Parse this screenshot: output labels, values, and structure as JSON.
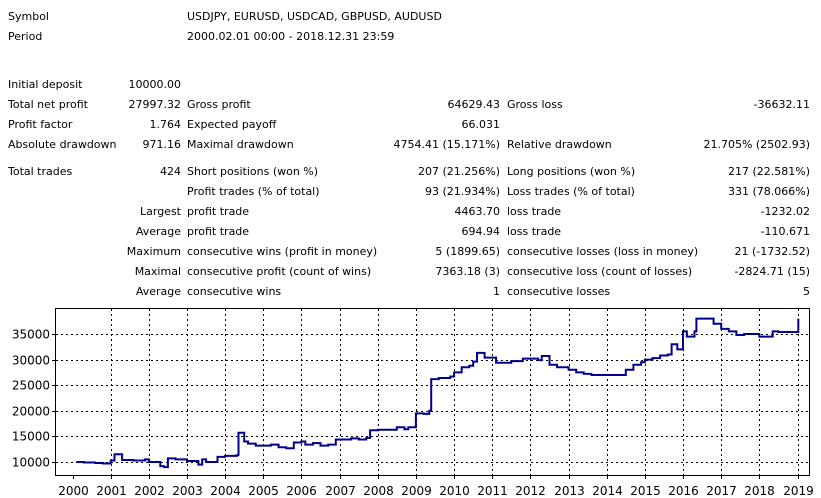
{
  "report": {
    "symbol_label": "Symbol",
    "symbol_value": "USDJPY, EURUSD, USDCAD, GBPUSD, AUDUSD",
    "period_label": "Period",
    "period_value": "2000.02.01 00:00 - 2018.12.31 23:59",
    "initial_deposit_label": "Initial deposit",
    "initial_deposit_value": "10000.00",
    "total_net_profit_label": "Total net profit",
    "total_net_profit_value": "27997.32",
    "gross_profit_label": "Gross profit",
    "gross_profit_value": "64629.43",
    "gross_loss_label": "Gross loss",
    "gross_loss_value": "-36632.11",
    "profit_factor_label": "Profit factor",
    "profit_factor_value": "1.764",
    "expected_payoff_label": "Expected payoff",
    "expected_payoff_value": "66.031",
    "absolute_drawdown_label": "Absolute drawdown",
    "absolute_drawdown_value": "971.16",
    "maximal_drawdown_label": "Maximal drawdown",
    "maximal_drawdown_value": "4754.41 (15.171%)",
    "relative_drawdown_label": "Relative drawdown",
    "relative_drawdown_value": "21.705% (2502.93)",
    "total_trades_label": "Total trades",
    "total_trades_value": "424",
    "short_positions_label": "Short positions (won %)",
    "short_positions_value": "207 (21.256%)",
    "long_positions_label": "Long positions (won %)",
    "long_positions_value": "217 (22.581%)",
    "profit_trades_label": "Profit trades (% of total)",
    "profit_trades_value": "93 (21.934%)",
    "loss_trades_label": "Loss trades (% of total)",
    "loss_trades_value": "331 (78.066%)",
    "largest_label": "Largest",
    "largest_profit_label": "profit trade",
    "largest_profit_value": "4463.70",
    "largest_loss_label": "loss trade",
    "largest_loss_value": "-1232.02",
    "average_label": "Average",
    "average_profit_label": "profit trade",
    "average_profit_value": "694.94",
    "average_loss_label": "loss trade",
    "average_loss_value": "-110.671",
    "maximum_label": "Maximum",
    "max_consec_wins_label": "consecutive wins (profit in money)",
    "max_consec_wins_value": "5 (1899.65)",
    "max_consec_losses_label": "consecutive losses (loss in money)",
    "max_consec_losses_value": "21 (-1732.52)",
    "maximal_label": "Maximal",
    "maximal_consec_profit_label": "consecutive profit (count of wins)",
    "maximal_consec_profit_value": "7363.18 (3)",
    "maximal_consec_loss_label": "consecutive loss (count of losses)",
    "maximal_consec_loss_value": "-2824.71 (15)",
    "avg_label": "Average",
    "avg_consec_wins_label": "consecutive wins",
    "avg_consec_wins_value": "1",
    "avg_consec_losses_label": "consecutive losses",
    "avg_consec_losses_value": "5"
  },
  "colors": {
    "line": "#00008B",
    "grid": "#000000",
    "background": "#ffffff"
  },
  "chart_data": {
    "type": "line",
    "title": "",
    "xlabel": "",
    "ylabel": "",
    "grid": true,
    "xlim": [
      2000,
      2019.1
    ],
    "ylim": [
      8000,
      39000
    ],
    "x_ticks": [
      "2000",
      "2001",
      "2002",
      "2003",
      "2004",
      "2005",
      "2006",
      "2007",
      "2008",
      "2009",
      "2010",
      "2011",
      "2012",
      "2013",
      "2014",
      "2015",
      "2016",
      "2017",
      "2018",
      "2019"
    ],
    "y_ticks": [
      "10000",
      "15000",
      "20000",
      "25000",
      "30000",
      "35000"
    ],
    "series": [
      {
        "x": [
          2000.1,
          2000.3,
          2000.6,
          2000.8,
          2001.0,
          2001.1,
          2001.3,
          2001.6,
          2001.9,
          2002.0,
          2002.3,
          2002.4,
          2002.5,
          2002.7,
          2003.0,
          2003.3,
          2003.4,
          2003.5,
          2003.6,
          2003.8,
          2004.0,
          2004.1,
          2004.3,
          2004.35,
          2004.5,
          2004.6,
          2004.8,
          2005.0,
          2005.2,
          2005.4,
          2005.6,
          2005.8,
          2006.0,
          2006.1,
          2006.3,
          2006.5,
          2006.7,
          2006.9,
          2007.0,
          2007.3,
          2007.5,
          2007.7,
          2007.8,
          2008.0,
          2008.3,
          2008.5,
          2008.7,
          2008.8,
          2009.0,
          2009.2,
          2009.35,
          2009.4,
          2009.6,
          2009.9,
          2010.0,
          2010.2,
          2010.4,
          2010.5,
          2010.6,
          2010.8,
          2011.0,
          2011.1,
          2011.3,
          2011.5,
          2011.8,
          2012.0,
          2012.2,
          2012.3,
          2012.5,
          2012.7,
          2013.0,
          2013.2,
          2013.4,
          2013.6,
          2013.8,
          2014.0,
          2014.3,
          2014.5,
          2014.7,
          2014.9,
          2015.0,
          2015.2,
          2015.4,
          2015.6,
          2015.7,
          2015.85,
          2016.0,
          2016.1,
          2016.3,
          2016.35,
          2016.5,
          2016.8,
          2017.0,
          2017.2,
          2017.4,
          2017.6,
          2018.0,
          2018.1,
          2018.2,
          2018.3,
          2018.35,
          2018.5,
          2018.9,
          2019.0,
          2019.02
        ],
        "values": [
          10000,
          9900,
          9800,
          9700,
          10300,
          11500,
          10400,
          10300,
          10500,
          10000,
          9200,
          9000,
          10700,
          10500,
          10200,
          9500,
          10500,
          10000,
          10000,
          11000,
          11200,
          11200,
          11300,
          15700,
          14000,
          13600,
          13200,
          13200,
          13400,
          12900,
          12700,
          13800,
          14000,
          13400,
          13700,
          13200,
          13400,
          14400,
          14400,
          14600,
          14400,
          14700,
          16200,
          16300,
          16300,
          16800,
          16400,
          16800,
          19500,
          19400,
          20000,
          26200,
          26400,
          26700,
          27500,
          28500,
          28800,
          29600,
          31300,
          30400,
          30400,
          29400,
          29400,
          29700,
          30200,
          30200,
          29900,
          30700,
          29000,
          28500,
          28000,
          27500,
          27200,
          27000,
          27000,
          27000,
          27000,
          28000,
          29000,
          29500,
          30000,
          30300,
          30800,
          31000,
          33000,
          32000,
          35500,
          34500,
          35500,
          38000,
          38000,
          37000,
          36000,
          35500,
          34800,
          35000,
          34500,
          34500,
          34500,
          34500,
          35500,
          35400,
          35400,
          35400,
          38000
        ]
      }
    ]
  }
}
